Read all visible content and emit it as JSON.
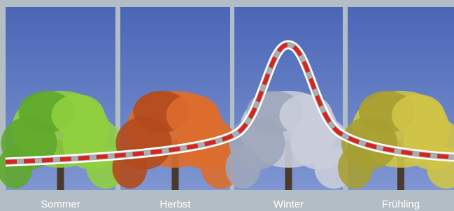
{
  "panels": [
    {
      "label": "Sommer"
    },
    {
      "label": "Herbst"
    },
    {
      "label": "Winter"
    },
    {
      "label": "Frühling"
    }
  ]
}
